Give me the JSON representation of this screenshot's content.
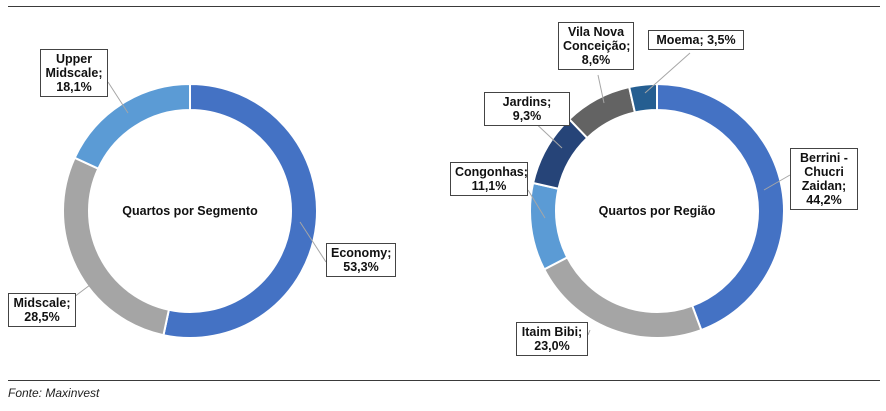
{
  "chart_data": [
    {
      "type": "pie",
      "donut": true,
      "center_label": "Quartos por Segmento",
      "slices": [
        {
          "label": "Economy",
          "value_text": "53,3%",
          "value": 53.3,
          "color": "#4472C4"
        },
        {
          "label": "Midscale",
          "value_text": "28,5%",
          "value": 28.5,
          "color": "#A5A5A5"
        },
        {
          "label": "Upper Midscale",
          "value_text": "18,1%",
          "value": 18.1,
          "color": "#5B9BD5"
        }
      ]
    },
    {
      "type": "pie",
      "donut": true,
      "center_label": "Quartos por Região",
      "slices": [
        {
          "label": "Berrini - Chucri Zaidan",
          "value_text": "44,2%",
          "value": 44.2,
          "color": "#4472C4"
        },
        {
          "label": "Itaim Bibi",
          "value_text": "23,0%",
          "value": 23.0,
          "color": "#A5A5A5"
        },
        {
          "label": "Congonhas",
          "value_text": "11,1%",
          "value": 11.1,
          "color": "#5B9BD5"
        },
        {
          "label": "Jardins",
          "value_text": "9,3%",
          "value": 9.3,
          "color": "#264478"
        },
        {
          "label": "Vila Nova Conceição",
          "value_text": "8,6%",
          "value": 8.6,
          "color": "#636363"
        },
        {
          "label": "Moema",
          "value_text": "3,5%",
          "value": 3.5,
          "color": "#255E91"
        }
      ]
    }
  ],
  "source_note": "Fonte: Maxinvest"
}
